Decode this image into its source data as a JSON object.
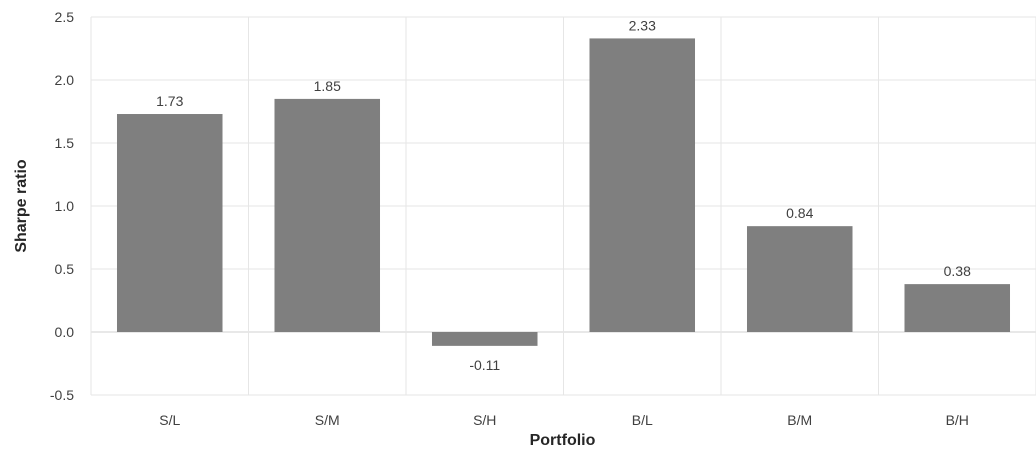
{
  "chart_data": {
    "type": "bar",
    "title": "",
    "xlabel": "Portfolio",
    "ylabel": "Sharpe ratio",
    "categories": [
      "S/L",
      "S/M",
      "S/H",
      "B/L",
      "B/M",
      "B/H"
    ],
    "values": [
      1.73,
      1.85,
      -0.11,
      2.33,
      0.84,
      0.38
    ],
    "value_labels": [
      "1.73",
      "1.85",
      "-0.11",
      "2.33",
      "0.84",
      "0.38"
    ],
    "ylim": [
      -0.5,
      2.5
    ],
    "yticks": [
      "-0.5",
      "0.0",
      "0.5",
      "1.0",
      "1.5",
      "2.0",
      "2.5"
    ],
    "grid": true,
    "legend": "none",
    "colors": {
      "bar": "#7f7f7f",
      "grid": "#e6e6e6",
      "axis": "#d0d0d0"
    }
  }
}
